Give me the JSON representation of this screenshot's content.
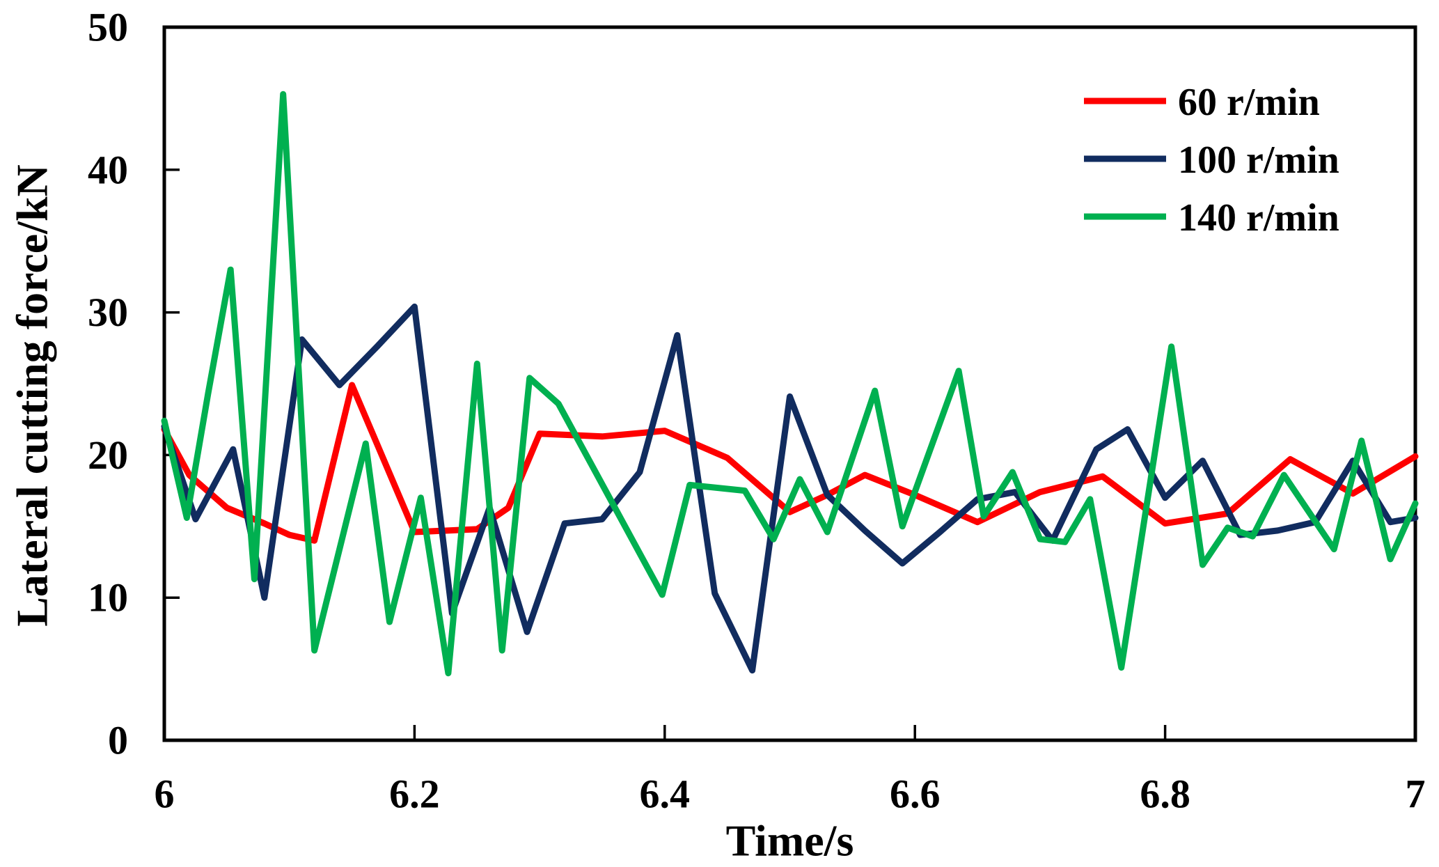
{
  "chart_data": {
    "type": "line",
    "title": "",
    "xlabel": "Time/s",
    "ylabel": "Lateral cutting force/kN",
    "xlim": [
      6,
      7
    ],
    "ylim": [
      0,
      50
    ],
    "x_ticks": [
      6,
      6.2,
      6.4,
      6.6,
      6.8,
      7
    ],
    "x_tick_labels": [
      "6",
      "6.2",
      "6.4",
      "6.6",
      "6.8",
      "7"
    ],
    "y_ticks": [
      0,
      10,
      20,
      30,
      40,
      50
    ],
    "y_tick_labels": [
      "0",
      "10",
      "20",
      "30",
      "40",
      "50"
    ],
    "grid": false,
    "legend_position": "top-right-inside",
    "frame_color": "#000000",
    "background_color": "#ffffff",
    "series": [
      {
        "name": "60 r/min",
        "color": "#fe0000",
        "x": [
          6.0,
          6.02,
          6.05,
          6.08,
          6.1,
          6.12,
          6.15,
          6.2,
          6.25,
          6.275,
          6.3,
          6.35,
          6.4,
          6.45,
          6.5,
          6.53,
          6.56,
          6.6,
          6.65,
          6.7,
          6.75,
          6.8,
          6.85,
          6.9,
          6.95,
          7.0
        ],
        "y": [
          21.8,
          18.6,
          16.3,
          15.2,
          14.4,
          14.0,
          24.9,
          14.6,
          14.8,
          16.3,
          21.5,
          21.3,
          21.7,
          19.8,
          16.0,
          17.2,
          18.6,
          17.2,
          15.3,
          17.4,
          18.5,
          15.2,
          15.9,
          19.7,
          17.3,
          19.9
        ]
      },
      {
        "name": "100 r/min",
        "color": "#112c5f",
        "x": [
          6.0,
          6.025,
          6.055,
          6.08,
          6.11,
          6.14,
          6.17,
          6.2,
          6.23,
          6.26,
          6.29,
          6.32,
          6.35,
          6.38,
          6.41,
          6.44,
          6.47,
          6.5,
          6.53,
          6.56,
          6.59,
          6.62,
          6.65,
          6.68,
          6.71,
          6.745,
          6.77,
          6.8,
          6.83,
          6.86,
          6.89,
          6.92,
          6.95,
          6.98,
          7.0
        ],
        "y": [
          22.0,
          15.5,
          20.4,
          10.0,
          28.1,
          24.9,
          27.6,
          30.4,
          8.9,
          16.3,
          7.6,
          15.2,
          15.5,
          18.8,
          28.4,
          10.3,
          4.9,
          24.1,
          17.2,
          14.7,
          12.4,
          14.6,
          16.9,
          17.4,
          14.0,
          20.4,
          21.8,
          17.0,
          19.6,
          14.4,
          14.7,
          15.3,
          19.6,
          15.3,
          15.6
        ]
      },
      {
        "name": "140 r/min",
        "color": "#00b050",
        "x": [
          6.0,
          6.018,
          6.035,
          6.053,
          6.072,
          6.095,
          6.12,
          6.161,
          6.18,
          6.205,
          6.227,
          6.25,
          6.27,
          6.292,
          6.315,
          6.372,
          6.398,
          6.42,
          6.464,
          6.487,
          6.508,
          6.53,
          6.568,
          6.59,
          6.635,
          6.655,
          6.678,
          6.7,
          6.72,
          6.74,
          6.765,
          6.805,
          6.83,
          6.85,
          6.87,
          6.895,
          6.935,
          6.957,
          6.98,
          7.0
        ],
        "y": [
          22.4,
          15.6,
          24.3,
          33.0,
          11.3,
          45.3,
          6.3,
          20.8,
          8.3,
          17.0,
          4.7,
          26.4,
          6.3,
          25.4,
          23.6,
          14.4,
          10.2,
          17.9,
          17.5,
          14.1,
          18.3,
          14.6,
          24.5,
          15.0,
          25.9,
          15.7,
          18.8,
          14.1,
          13.9,
          16.9,
          5.1,
          27.6,
          12.3,
          14.9,
          14.3,
          18.6,
          13.4,
          21.0,
          12.7,
          16.6
        ]
      }
    ]
  }
}
